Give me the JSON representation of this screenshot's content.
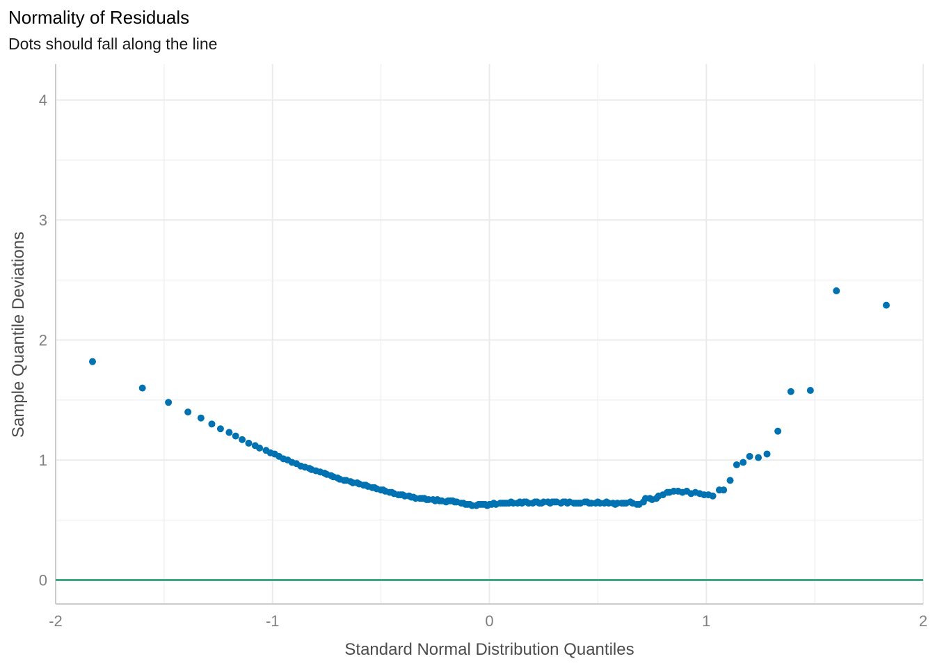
{
  "title": "Normality of Residuals",
  "subtitle": "Dots should fall along the line",
  "colors": {
    "points": "#0072B2",
    "reference_line": "#3AAA85",
    "grid": "#EBEBEB",
    "axis_line": "#CCCCCC"
  },
  "chart_data": {
    "type": "scatter",
    "title": "Normality of Residuals",
    "subtitle": "Dots should fall along the line",
    "xlabel": "Standard Normal Distribution Quantiles",
    "ylabel": "Sample Quantile Deviations",
    "xlim": [
      -2,
      2
    ],
    "ylim": [
      -0.2,
      4.3
    ],
    "x_ticks": [
      -2,
      -1,
      0,
      1,
      2
    ],
    "x_tick_labels": [
      "-2",
      "-1",
      "0",
      "1",
      "2"
    ],
    "y_ticks": [
      0,
      1,
      2,
      3,
      4
    ],
    "y_tick_labels": [
      "0",
      "1",
      "2",
      "3",
      "4"
    ],
    "grid": true,
    "reference_line": {
      "y": 0
    },
    "series": [
      {
        "x": [
          -1.83,
          -1.6,
          -1.48,
          -1.39,
          -1.33,
          -1.28,
          -1.24,
          -1.2,
          -1.17,
          -1.14,
          -1.11,
          -1.08,
          -1.06,
          -1.03,
          -1.01,
          -0.99,
          -0.97,
          -0.95,
          -0.93,
          -0.91,
          -0.89,
          -0.87,
          -0.85,
          -0.83,
          -0.82,
          -0.8,
          -0.78,
          -0.76,
          -0.75,
          -0.73,
          -0.72,
          -0.7,
          -0.69,
          -0.67,
          -0.66,
          -0.64,
          -0.63,
          -0.61,
          -0.6,
          -0.58,
          -0.57,
          -0.56,
          -0.54,
          -0.53,
          -0.52,
          -0.5,
          -0.49,
          -0.48,
          -0.46,
          -0.45,
          -0.44,
          -0.42,
          -0.41,
          -0.4,
          -0.39,
          -0.37,
          -0.36,
          -0.35,
          -0.34,
          -0.32,
          -0.31,
          -0.3,
          -0.29,
          -0.28,
          -0.26,
          -0.25,
          -0.24,
          -0.23,
          -0.22,
          -0.2,
          -0.19,
          -0.18,
          -0.17,
          -0.16,
          -0.15,
          -0.13,
          -0.12,
          -0.11,
          -0.1,
          -0.09,
          -0.08,
          -0.06,
          -0.05,
          -0.04,
          -0.03,
          -0.02,
          -0.01,
          0.0,
          0.01,
          0.02,
          0.03,
          0.05,
          0.06,
          0.07,
          0.08,
          0.09,
          0.1,
          0.11,
          0.13,
          0.14,
          0.15,
          0.16,
          0.17,
          0.18,
          0.2,
          0.21,
          0.22,
          0.23,
          0.24,
          0.25,
          0.27,
          0.28,
          0.29,
          0.3,
          0.31,
          0.33,
          0.34,
          0.35,
          0.36,
          0.37,
          0.39,
          0.4,
          0.41,
          0.42,
          0.44,
          0.45,
          0.46,
          0.47,
          0.49,
          0.5,
          0.51,
          0.53,
          0.54,
          0.55,
          0.57,
          0.58,
          0.59,
          0.61,
          0.62,
          0.63,
          0.65,
          0.66,
          0.68,
          0.69,
          0.71,
          0.72,
          0.74,
          0.75,
          0.77,
          0.78,
          0.8,
          0.82,
          0.83,
          0.85,
          0.87,
          0.89,
          0.91,
          0.93,
          0.95,
          0.97,
          0.99,
          1.01,
          1.03,
          1.06,
          1.08,
          1.11,
          1.14,
          1.17,
          1.2,
          1.24,
          1.28,
          1.33,
          1.39,
          1.48,
          1.6,
          1.83
        ],
        "y": [
          1.82,
          1.6,
          1.48,
          1.4,
          1.35,
          1.3,
          1.26,
          1.23,
          1.2,
          1.17,
          1.14,
          1.12,
          1.1,
          1.08,
          1.06,
          1.05,
          1.03,
          1.01,
          1.0,
          0.98,
          0.97,
          0.95,
          0.94,
          0.93,
          0.92,
          0.91,
          0.9,
          0.89,
          0.88,
          0.87,
          0.86,
          0.85,
          0.84,
          0.83,
          0.83,
          0.82,
          0.81,
          0.81,
          0.8,
          0.79,
          0.79,
          0.78,
          0.77,
          0.77,
          0.76,
          0.75,
          0.75,
          0.74,
          0.73,
          0.73,
          0.72,
          0.71,
          0.71,
          0.71,
          0.7,
          0.7,
          0.69,
          0.69,
          0.68,
          0.68,
          0.68,
          0.68,
          0.67,
          0.67,
          0.67,
          0.66,
          0.67,
          0.66,
          0.66,
          0.65,
          0.66,
          0.66,
          0.66,
          0.65,
          0.65,
          0.64,
          0.64,
          0.63,
          0.63,
          0.63,
          0.62,
          0.62,
          0.63,
          0.63,
          0.63,
          0.63,
          0.62,
          0.63,
          0.63,
          0.64,
          0.63,
          0.64,
          0.64,
          0.64,
          0.64,
          0.64,
          0.65,
          0.64,
          0.64,
          0.65,
          0.64,
          0.65,
          0.65,
          0.64,
          0.64,
          0.65,
          0.65,
          0.64,
          0.64,
          0.65,
          0.65,
          0.64,
          0.65,
          0.65,
          0.65,
          0.64,
          0.65,
          0.65,
          0.64,
          0.65,
          0.64,
          0.64,
          0.64,
          0.64,
          0.65,
          0.65,
          0.64,
          0.64,
          0.64,
          0.65,
          0.64,
          0.64,
          0.65,
          0.64,
          0.64,
          0.63,
          0.64,
          0.64,
          0.64,
          0.64,
          0.65,
          0.64,
          0.63,
          0.63,
          0.65,
          0.68,
          0.68,
          0.67,
          0.68,
          0.7,
          0.71,
          0.73,
          0.73,
          0.74,
          0.74,
          0.73,
          0.74,
          0.72,
          0.73,
          0.72,
          0.71,
          0.71,
          0.7,
          0.75,
          0.75,
          0.83,
          0.96,
          0.98,
          1.03,
          1.02,
          1.05,
          1.24,
          1.57,
          1.58,
          2.41,
          2.29
        ]
      }
    ]
  }
}
